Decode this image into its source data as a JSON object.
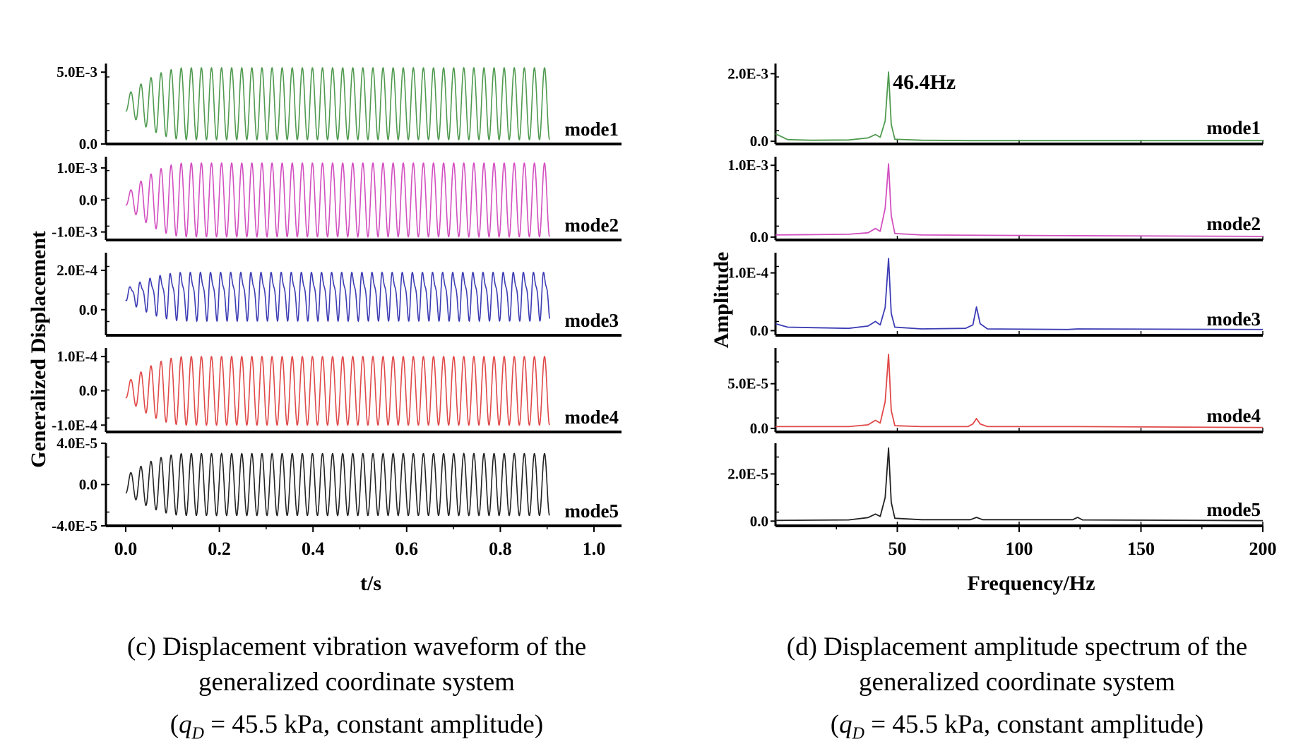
{
  "chart_data": [
    {
      "type": "line",
      "xlabel": "t/s",
      "ylabel": "Generalized Displacement",
      "xlim": [
        0.0,
        1.0
      ],
      "xticks": [
        "0.0",
        "0.2",
        "0.4",
        "0.6",
        "0.8",
        "1.0"
      ],
      "signal": {
        "end_time": 0.905,
        "frequency_hz": 46.4,
        "rise_periods": 6
      },
      "panels": [
        {
          "name": "mode1",
          "color": "#4f9a4f",
          "ylim": [
            0.0,
            0.0056
          ],
          "yticks": [
            {
              "value": 0.005,
              "label": "5.0E-3"
            },
            {
              "value": 0.0,
              "label": "0.0"
            }
          ],
          "mean": 0.0028,
          "amplitude": 0.0025,
          "start_amplitude": 0.0005,
          "harmonic": 0.0
        },
        {
          "name": "mode2",
          "color": "#d24fc0",
          "ylim": [
            -0.00125,
            0.00135
          ],
          "yticks": [
            {
              "value": 0.001,
              "label": "1.0E-3"
            },
            {
              "value": 0.0,
              "label": "0.0"
            },
            {
              "value": -0.001,
              "label": "-1.0E-3"
            }
          ],
          "mean": 0.0,
          "amplitude": 0.00115,
          "start_amplitude": 0.00015,
          "harmonic": 0.0
        },
        {
          "name": "mode3",
          "color": "#3c3cb4",
          "ylim": [
            -0.00013,
            0.00029
          ],
          "yticks": [
            {
              "value": 0.0002,
              "label": "2.0E-4"
            },
            {
              "value": 0.0,
              "label": "0.0"
            }
          ],
          "mean": 8e-05,
          "amplitude": 0.00013,
          "start_amplitude": 3e-05,
          "harmonic": 0.35
        },
        {
          "name": "mode4",
          "color": "#e04848",
          "ylim": [
            -0.00012,
            0.000125
          ],
          "yticks": [
            {
              "value": 0.0001,
              "label": "1.0E-4"
            },
            {
              "value": 0.0,
              "label": "0.0"
            },
            {
              "value": -0.0001,
              "label": "-1.0E-4"
            }
          ],
          "mean": 0.0,
          "amplitude": 0.0001,
          "start_amplitude": 2e-05,
          "harmonic": 0.0
        },
        {
          "name": "mode5",
          "color": "#222222",
          "ylim": [
            -4e-05,
            4e-05
          ],
          "yticks": [
            {
              "value": 4e-05,
              "label": "4.0E-5"
            },
            {
              "value": 0.0,
              "label": "0.0"
            },
            {
              "value": -4e-05,
              "label": "-4.0E-5"
            }
          ],
          "mean": 0.0,
          "amplitude": 3e-05,
          "start_amplitude": 8e-06,
          "harmonic": 0.0
        }
      ]
    },
    {
      "type": "line",
      "xlabel": "Frequency/Hz",
      "ylabel": "Amplitude",
      "xlim": [
        0,
        200
      ],
      "xticks": [
        50,
        100,
        150,
        200
      ],
      "annotation": {
        "text": "46.4Hz",
        "x": 46.4,
        "panel": "mode1"
      },
      "panels": [
        {
          "name": "mode1",
          "color": "#4f9a4f",
          "ylim": [
            -8e-05,
            0.0023
          ],
          "yticks": [
            {
              "value": 0.002,
              "label": "2.0E-3"
            },
            {
              "value": 0.0,
              "label": "0.0"
            }
          ],
          "points": [
            [
              0,
              0.00022
            ],
            [
              5,
              5e-05
            ],
            [
              15,
              3e-05
            ],
            [
              30,
              4e-05
            ],
            [
              38,
              0.0001
            ],
            [
              41,
              0.0002
            ],
            [
              43,
              0.00012
            ],
            [
              45,
              0.0006
            ],
            [
              46.4,
              0.00205
            ],
            [
              47.5,
              0.0005
            ],
            [
              49,
              6e-05
            ],
            [
              60,
              3e-05
            ],
            [
              80,
              2e-05
            ],
            [
              120,
              2e-05
            ],
            [
              200,
              2e-05
            ]
          ]
        },
        {
          "name": "mode2",
          "color": "#d24fc0",
          "ylim": [
            -4e-05,
            0.00112
          ],
          "yticks": [
            {
              "value": 0.001,
              "label": "1.0E-3"
            },
            {
              "value": 0.0,
              "label": "0.0"
            }
          ],
          "points": [
            [
              0,
              3e-05
            ],
            [
              30,
              4e-05
            ],
            [
              38,
              6e-05
            ],
            [
              41,
              0.00012
            ],
            [
              43,
              8e-05
            ],
            [
              45,
              0.0004
            ],
            [
              46.4,
              0.00102
            ],
            [
              47.5,
              0.0003
            ],
            [
              49,
              5e-05
            ],
            [
              60,
              3e-05
            ],
            [
              120,
              2e-05
            ],
            [
              200,
              1e-05
            ]
          ]
        },
        {
          "name": "mode3",
          "color": "#3c3cb4",
          "ylim": [
            -8e-06,
            0.000135
          ],
          "yticks": [
            {
              "value": 0.0001,
              "label": "1.0E-4"
            },
            {
              "value": 0.0,
              "label": "0.0"
            }
          ],
          "points": [
            [
              0,
              1.2e-05
            ],
            [
              5,
              6e-06
            ],
            [
              30,
              4e-06
            ],
            [
              38,
              8e-06
            ],
            [
              41,
              1.6e-05
            ],
            [
              43,
              1e-05
            ],
            [
              45,
              4e-05
            ],
            [
              46.4,
              0.000125
            ],
            [
              47.5,
              3e-05
            ],
            [
              49,
              6e-06
            ],
            [
              60,
              3e-06
            ],
            [
              78,
              4e-06
            ],
            [
              81,
              1e-05
            ],
            [
              82.5,
              4.1e-05
            ],
            [
              84,
              1.2e-05
            ],
            [
              87,
              3e-06
            ],
            [
              120,
              2e-06
            ],
            [
              124,
              3e-06
            ],
            [
              200,
              2e-06
            ]
          ]
        },
        {
          "name": "mode4",
          "color": "#e04848",
          "ylim": [
            -4e-06,
            9e-05
          ],
          "yticks": [
            {
              "value": 5e-05,
              "label": "5.0E-5"
            },
            {
              "value": 0.0,
              "label": "0.0"
            }
          ],
          "points": [
            [
              0,
              2e-06
            ],
            [
              30,
              2e-06
            ],
            [
              38,
              4e-06
            ],
            [
              41,
              9e-06
            ],
            [
              43,
              6e-06
            ],
            [
              45,
              3e-05
            ],
            [
              46.4,
              8.3e-05
            ],
            [
              47.5,
              2e-05
            ],
            [
              49,
              3e-06
            ],
            [
              60,
              2e-06
            ],
            [
              79,
              2e-06
            ],
            [
              81,
              5e-06
            ],
            [
              82.5,
              1.1e-05
            ],
            [
              84,
              5e-06
            ],
            [
              87,
              2e-06
            ],
            [
              124,
              2e-06
            ],
            [
              200,
              1e-06
            ]
          ]
        },
        {
          "name": "mode5",
          "color": "#222222",
          "ylim": [
            -2e-06,
            3.3e-05
          ],
          "yticks": [
            {
              "value": 2e-05,
              "label": "2.0E-5"
            },
            {
              "value": 0.0,
              "label": "0.0"
            }
          ],
          "points": [
            [
              0,
              3e-07
            ],
            [
              30,
              5e-07
            ],
            [
              38,
              1.5e-06
            ],
            [
              41,
              3e-06
            ],
            [
              43,
              2e-06
            ],
            [
              45,
              1e-05
            ],
            [
              46.4,
              3.1e-05
            ],
            [
              47.5,
              8e-06
            ],
            [
              49,
              1.2e-06
            ],
            [
              60,
              6e-07
            ],
            [
              80,
              6e-07
            ],
            [
              82.5,
              1.6e-06
            ],
            [
              85,
              6e-07
            ],
            [
              122,
              6e-07
            ],
            [
              124,
              1.6e-06
            ],
            [
              126,
              5e-07
            ],
            [
              200,
              2e-07
            ]
          ]
        }
      ]
    }
  ],
  "captions": {
    "left": {
      "line1": "(c) Displacement  vibration waveform of the",
      "line2": "generalized coordinate system",
      "cond_var": "q",
      "cond_sub": "D",
      "cond_rest": " = 45.5 kPa, constant amplitude)"
    },
    "right": {
      "line1": "(d) Displacement amplitude spectrum of the",
      "line2": "generalized coordinate system",
      "cond_var": "q",
      "cond_sub": "D",
      "cond_rest": " = 45.5 kPa, constant amplitude)"
    }
  }
}
